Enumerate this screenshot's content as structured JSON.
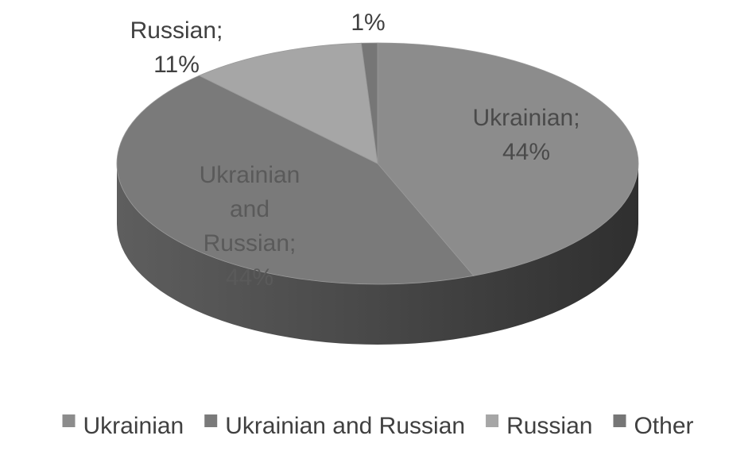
{
  "chart_data": {
    "type": "pie",
    "style": "3d",
    "title": "",
    "categories": [
      "Ukrainian",
      "Ukrainian and Russian",
      "Russian",
      "Other"
    ],
    "values": [
      44,
      44,
      11,
      1
    ],
    "unit": "%",
    "data_labels": [
      {
        "lines": [
          "Ukrainian;",
          "44%"
        ]
      },
      {
        "lines": [
          "Ukrainian",
          "and",
          "Russian;",
          "44%"
        ]
      },
      {
        "lines": [
          "Russian;",
          "11%"
        ]
      },
      {
        "lines": [
          "1%"
        ]
      }
    ],
    "legend": {
      "position": "bottom",
      "entries": [
        "Ukrainian",
        "Ukrainian and Russian",
        "Russian",
        "Other"
      ]
    },
    "colors": {
      "Ukrainian": "#8c8c8c",
      "Ukrainian and Russian": "#7a7a7a",
      "Russian": "#a6a6a6",
      "Other": "#767676",
      "legend_text": "#404040"
    }
  }
}
